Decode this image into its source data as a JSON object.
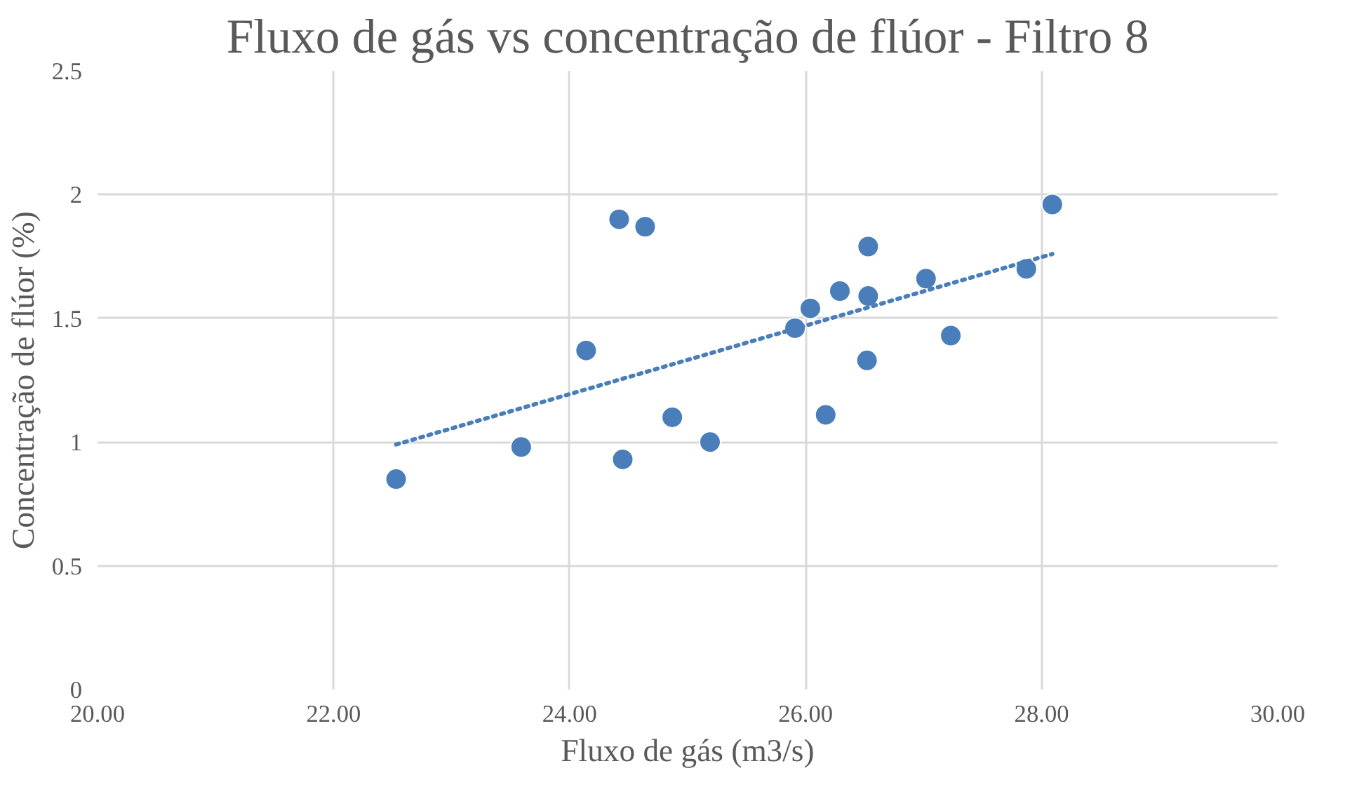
{
  "chart_data": {
    "type": "scatter",
    "title": "Fluxo de gás vs concentração de flúor - Filtro 8",
    "xlabel": "Fluxo de gás (m3/s)",
    "ylabel": "Concentração de flúor (%)",
    "xlim": [
      20,
      30
    ],
    "xticks": [
      {
        "value": 20,
        "label": "20.00"
      },
      {
        "value": 22,
        "label": "22.00"
      },
      {
        "value": 24,
        "label": "24.00"
      },
      {
        "value": 26,
        "label": "26.00"
      },
      {
        "value": 28,
        "label": "28.00"
      },
      {
        "value": 30,
        "label": "30.00"
      }
    ],
    "ylim": [
      0,
      2.5
    ],
    "yticks": [
      0,
      0.5,
      1,
      1.5,
      2,
      2.5
    ],
    "grid": true,
    "series": [
      {
        "color": "#4a7ebb",
        "marker": "circle",
        "x": [
          22.53,
          23.59,
          24.14,
          24.42,
          24.64,
          24.45,
          24.87,
          25.19,
          25.91,
          26.04,
          26.29,
          26.17,
          26.53,
          26.53,
          26.52,
          27.02,
          27.23,
          27.87,
          28.09
        ],
        "values": [
          0.85,
          0.98,
          1.37,
          1.9,
          1.87,
          0.93,
          1.1,
          1.0,
          1.46,
          1.54,
          1.61,
          1.11,
          1.79,
          1.59,
          1.33,
          1.66,
          1.43,
          1.7,
          1.96
        ]
      },
      {
        "type": "line",
        "color": "#4a7ebb",
        "line_style": "dotted",
        "marker": "none",
        "x": [
          22.53,
          28.09
        ],
        "values": [
          0.99,
          1.76
        ]
      }
    ]
  }
}
